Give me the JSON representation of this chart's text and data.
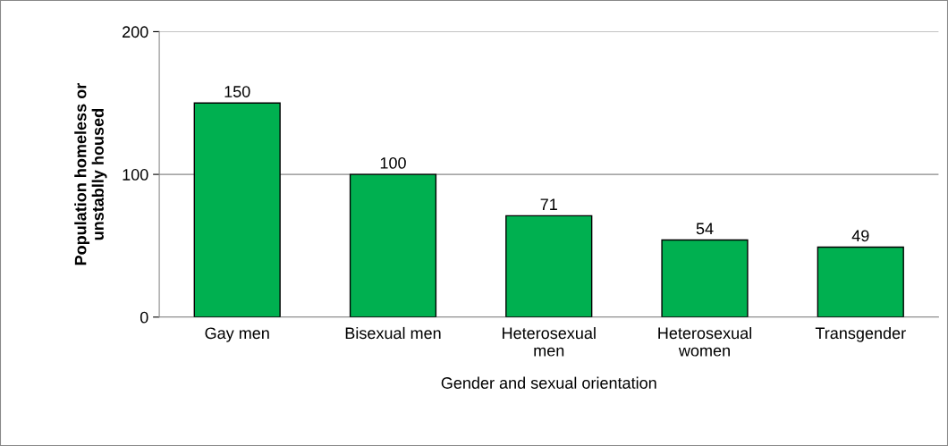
{
  "chart_data": {
    "type": "bar",
    "categories": [
      "Gay men",
      "Bisexual men",
      "Heterosexual\nmen",
      "Heterosexual\nwomen",
      "Transgender"
    ],
    "values": [
      150,
      100,
      71,
      54,
      49
    ],
    "color": "#00b050",
    "ylabel": "Population homeless or\nunstablly housed",
    "xlabel": "Gender and sexual orientation",
    "ylim": [
      0,
      200
    ],
    "yticks": [
      0,
      100,
      200
    ],
    "grid": "y",
    "data_labels": true
  }
}
